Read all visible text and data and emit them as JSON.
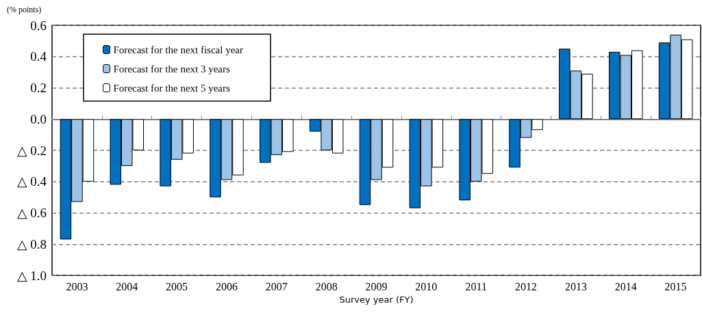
{
  "chart_data": {
    "type": "bar",
    "ylabel": "(% points)",
    "xlabel": "Survey year (FY)",
    "categories": [
      "2003",
      "2004",
      "2005",
      "2006",
      "2007",
      "2008",
      "2009",
      "2010",
      "2011",
      "2012",
      "2013",
      "2014",
      "2015"
    ],
    "series": [
      {
        "name": "Forecast for the next fiscal year",
        "color": "#0070c0",
        "values": [
          -0.77,
          -0.42,
          -0.43,
          -0.5,
          -0.28,
          -0.08,
          -0.55,
          -0.57,
          -0.52,
          -0.31,
          0.45,
          0.43,
          0.49
        ]
      },
      {
        "name": "Forecast for the next 3 years",
        "color": "#9dc3e6",
        "values": [
          -0.53,
          -0.3,
          -0.26,
          -0.39,
          -0.23,
          -0.2,
          -0.39,
          -0.43,
          -0.4,
          -0.12,
          0.31,
          0.41,
          0.54
        ]
      },
      {
        "name": "Forecast for the next 5 years",
        "color": "#ffffff",
        "values": [
          -0.4,
          -0.2,
          -0.22,
          -0.36,
          -0.21,
          -0.22,
          -0.31,
          -0.31,
          -0.35,
          -0.07,
          0.29,
          0.44,
          0.51
        ]
      }
    ],
    "ylim": [
      -1.0,
      0.6
    ],
    "yticks": [
      {
        "value": -1.0,
        "label": "△ 1.0"
      },
      {
        "value": -0.8,
        "label": "△ 0.8"
      },
      {
        "value": -0.6,
        "label": "△ 0.6"
      },
      {
        "value": -0.4,
        "label": "△ 0.4"
      },
      {
        "value": -0.2,
        "label": "△ 0.2"
      },
      {
        "value": 0,
        "label": "0.0"
      },
      {
        "value": 0.2,
        "label": "0.2"
      },
      {
        "value": 0.4,
        "label": "0.4"
      },
      {
        "value": 0.6,
        "label": "0.6"
      }
    ],
    "grid": "y",
    "legend": "top left"
  }
}
